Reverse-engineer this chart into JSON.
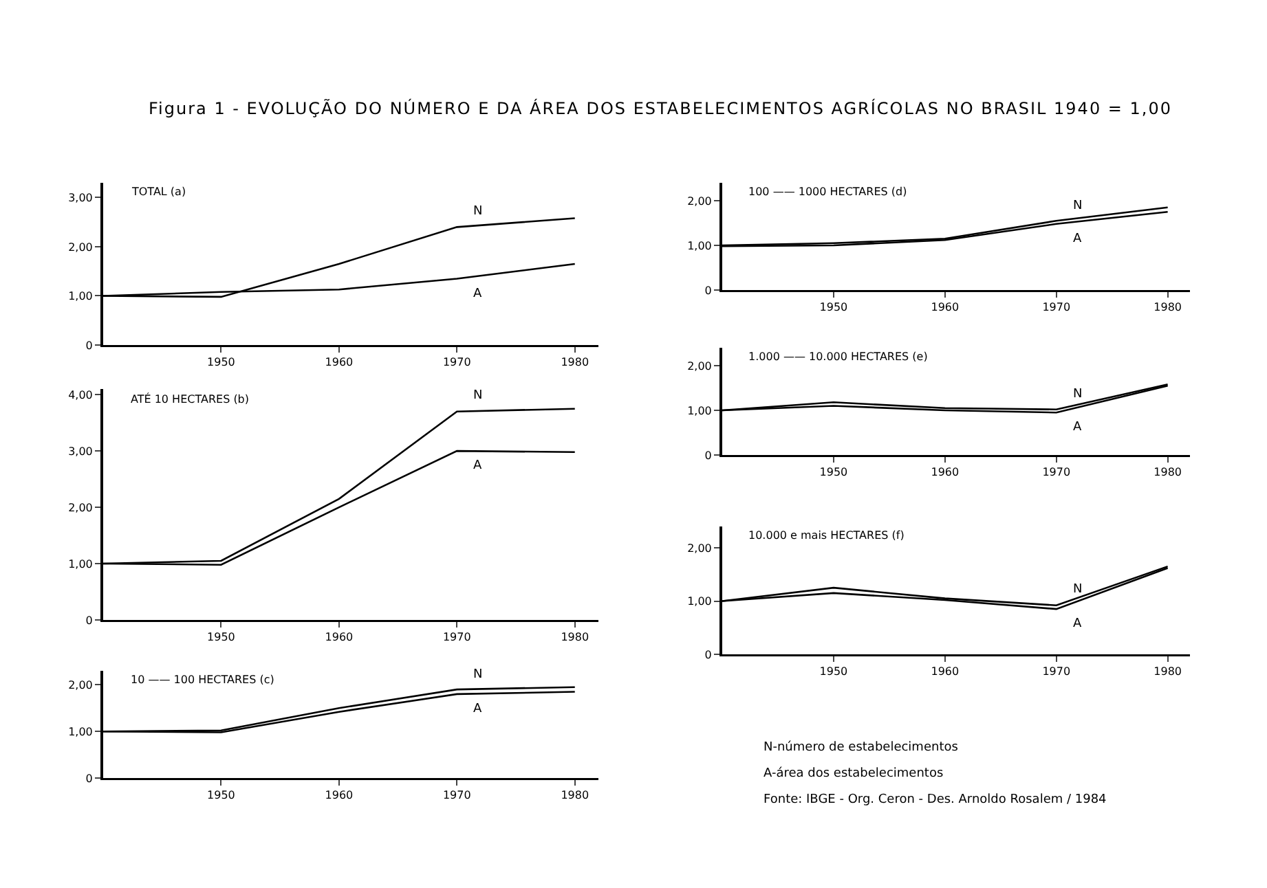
{
  "chart_data": [
    {
      "type": "line",
      "title": "Figura 1 - EVOLUÇÃO DO NÚMERO E DA ÁREA DOS ESTABELECIMENTOS AGRÍCOLAS NO BRASIL 1940 = 1,00",
      "subtitle": "TOTAL (a)",
      "x": [
        1940,
        1950,
        1960,
        1970,
        1980
      ],
      "xlim": [
        1940,
        1982
      ],
      "xticks": [
        1950,
        1960,
        1970,
        1980
      ],
      "ylim": [
        0,
        3.3
      ],
      "yticks": [
        {
          "value": 0,
          "label": "0"
        },
        {
          "value": 1,
          "label": "1,00"
        },
        {
          "value": 2,
          "label": "2,00"
        },
        {
          "value": 3,
          "label": "3,00"
        }
      ],
      "grid": false,
      "legend": false,
      "series": [
        {
          "name": "N",
          "color": "#000000",
          "values": [
            1.0,
            0.98,
            1.65,
            2.4,
            2.58
          ]
        },
        {
          "name": "A",
          "color": "#000000",
          "values": [
            1.0,
            1.08,
            1.13,
            1.35,
            1.65
          ]
        }
      ]
    },
    {
      "type": "line",
      "subtitle": "ATÉ 10 HECTARES (b)",
      "x": [
        1940,
        1950,
        1960,
        1970,
        1980
      ],
      "xlim": [
        1940,
        1982
      ],
      "xticks": [
        1950,
        1960,
        1970,
        1980
      ],
      "ylim": [
        0,
        4.1
      ],
      "yticks": [
        {
          "value": 0,
          "label": "0"
        },
        {
          "value": 1,
          "label": "1,00"
        },
        {
          "value": 2,
          "label": "2,00"
        },
        {
          "value": 3,
          "label": "3,00"
        },
        {
          "value": 4,
          "label": "4,00"
        }
      ],
      "grid": false,
      "legend": false,
      "series": [
        {
          "name": "N",
          "color": "#000000",
          "values": [
            1.0,
            1.05,
            2.15,
            3.7,
            3.75
          ]
        },
        {
          "name": "A",
          "color": "#000000",
          "values": [
            1.0,
            0.98,
            2.0,
            3.0,
            2.98
          ]
        }
      ]
    },
    {
      "type": "line",
      "subtitle": "10 —— 100 HECTARES (c)",
      "x": [
        1940,
        1950,
        1960,
        1970,
        1980
      ],
      "xlim": [
        1940,
        1982
      ],
      "xticks": [
        1950,
        1960,
        1970,
        1980
      ],
      "ylim": [
        0,
        2.3
      ],
      "yticks": [
        {
          "value": 0,
          "label": "0"
        },
        {
          "value": 1,
          "label": "1,00"
        },
        {
          "value": 2,
          "label": "2,00"
        }
      ],
      "grid": false,
      "legend": false,
      "series": [
        {
          "name": "N",
          "color": "#000000",
          "values": [
            1.0,
            1.02,
            1.5,
            1.9,
            1.95
          ]
        },
        {
          "name": "A",
          "color": "#000000",
          "values": [
            1.0,
            0.98,
            1.42,
            1.8,
            1.85
          ]
        }
      ]
    },
    {
      "type": "line",
      "subtitle": "100 —— 1000 HECTARES (d)",
      "x": [
        1940,
        1950,
        1960,
        1970,
        1980
      ],
      "xlim": [
        1940,
        1982
      ],
      "xticks": [
        1950,
        1960,
        1970,
        1980
      ],
      "ylim": [
        0,
        2.4
      ],
      "yticks": [
        {
          "value": 0,
          "label": "0"
        },
        {
          "value": 1,
          "label": "1,00"
        },
        {
          "value": 2,
          "label": "2,00"
        }
      ],
      "grid": false,
      "legend": false,
      "series": [
        {
          "name": "N",
          "color": "#000000",
          "values": [
            1.0,
            1.05,
            1.15,
            1.55,
            1.85
          ]
        },
        {
          "name": "A",
          "color": "#000000",
          "values": [
            0.98,
            1.0,
            1.12,
            1.48,
            1.75
          ]
        }
      ]
    },
    {
      "type": "line",
      "subtitle": "1.000 —— 10.000 HECTARES (e)",
      "x": [
        1940,
        1950,
        1960,
        1970,
        1980
      ],
      "xlim": [
        1940,
        1982
      ],
      "xticks": [
        1950,
        1960,
        1970,
        1980
      ],
      "ylim": [
        0,
        2.4
      ],
      "yticks": [
        {
          "value": 0,
          "label": "0"
        },
        {
          "value": 1,
          "label": "1,00"
        },
        {
          "value": 2,
          "label": "2,00"
        }
      ],
      "grid": false,
      "legend": false,
      "series": [
        {
          "name": "N",
          "color": "#000000",
          "values": [
            1.0,
            1.18,
            1.05,
            1.02,
            1.58
          ]
        },
        {
          "name": "A",
          "color": "#000000",
          "values": [
            1.0,
            1.1,
            1.0,
            0.95,
            1.55
          ]
        }
      ]
    },
    {
      "type": "line",
      "subtitle": "10.000 e mais HECTARES (f)",
      "x": [
        1940,
        1950,
        1960,
        1970,
        1980
      ],
      "xlim": [
        1940,
        1982
      ],
      "xticks": [
        1950,
        1960,
        1970,
        1980
      ],
      "ylim": [
        0,
        2.4
      ],
      "yticks": [
        {
          "value": 0,
          "label": "0"
        },
        {
          "value": 1,
          "label": "1,00"
        },
        {
          "value": 2,
          "label": "2,00"
        }
      ],
      "grid": false,
      "legend": false,
      "annotations": [
        "N-número de estabelecimentos",
        "A-área dos estabelecimentos",
        "Fonte: IBGE - Org. Ceron - Des. Arnoldo Rosalem / 1984"
      ],
      "series": [
        {
          "name": "N",
          "color": "#000000",
          "values": [
            1.0,
            1.25,
            1.05,
            0.92,
            1.65
          ]
        },
        {
          "name": "A",
          "color": "#000000",
          "values": [
            1.0,
            1.15,
            1.02,
            0.85,
            1.62
          ]
        }
      ]
    }
  ]
}
